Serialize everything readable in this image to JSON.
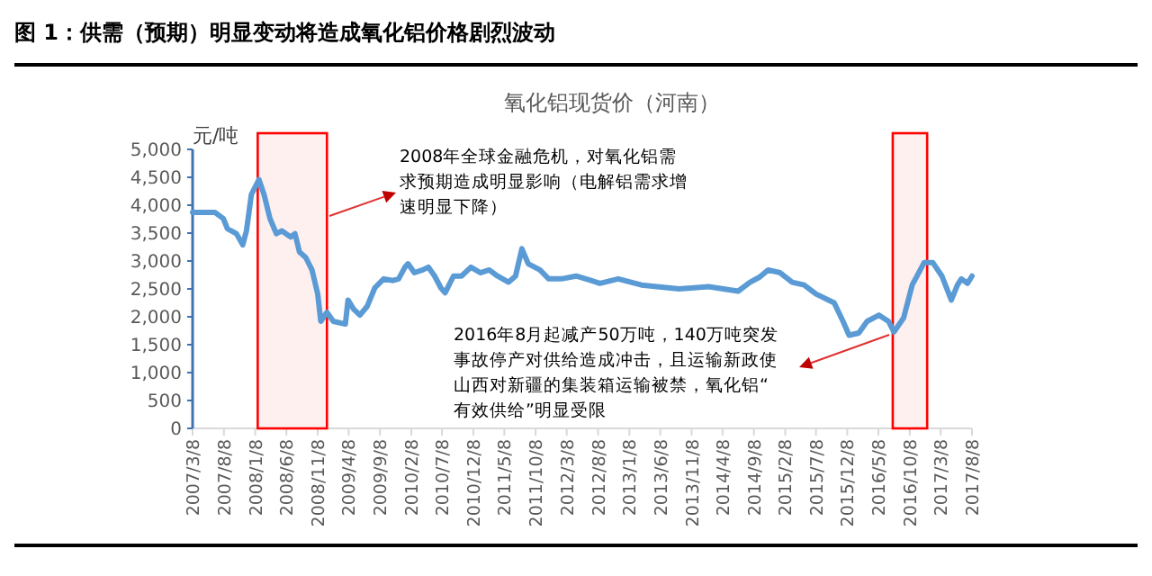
{
  "chart_data": {
    "type": "line",
    "title": "图 1：供需（预期）明显变动将造成氧化铝价格剧烈波动",
    "subtitle": "氧化铝现货价（河南）",
    "ylabel": "元/吨",
    "xlim": [
      "2007-03-08",
      "2017-08-08"
    ],
    "ylim": [
      0,
      5000
    ],
    "xticks": [
      {
        "value": "2007-03-08",
        "label": "2007/3/8"
      },
      {
        "value": "2007-08-08",
        "label": "2007/8/8"
      },
      {
        "value": "2008-01-08",
        "label": "2008/1/8"
      },
      {
        "value": "2008-06-08",
        "label": "2008/6/8"
      },
      {
        "value": "2008-11-08",
        "label": "2008/11/8"
      },
      {
        "value": "2009-04-08",
        "label": "2009/4/8"
      },
      {
        "value": "2009-09-08",
        "label": "2009/9/8"
      },
      {
        "value": "2010-02-08",
        "label": "2010/2/8"
      },
      {
        "value": "2010-07-08",
        "label": "2010/7/8"
      },
      {
        "value": "2010-12-08",
        "label": "2010/12/8"
      },
      {
        "value": "2011-05-08",
        "label": "2011/5/8"
      },
      {
        "value": "2011-10-08",
        "label": "2011/10/8"
      },
      {
        "value": "2012-03-08",
        "label": "2012/3/8"
      },
      {
        "value": "2012-08-08",
        "label": "2012/8/8"
      },
      {
        "value": "2013-01-08",
        "label": "2013/1/8"
      },
      {
        "value": "2013-06-08",
        "label": "2013/6/8"
      },
      {
        "value": "2013-11-08",
        "label": "2013/11/8"
      },
      {
        "value": "2014-04-08",
        "label": "2014/4/8"
      },
      {
        "value": "2014-09-08",
        "label": "2014/9/8"
      },
      {
        "value": "2015-02-08",
        "label": "2015/2/8"
      },
      {
        "value": "2015-07-08",
        "label": "2015/7/8"
      },
      {
        "value": "2015-12-08",
        "label": "2015/12/8"
      },
      {
        "value": "2016-05-08",
        "label": "2016/5/8"
      },
      {
        "value": "2016-10-08",
        "label": "2016/10/8"
      },
      {
        "value": "2017-03-08",
        "label": "2017/3/8"
      },
      {
        "value": "2017-08-08",
        "label": "2017/8/8"
      }
    ],
    "yticks": [
      0,
      {
        "value": 500,
        "label": "500"
      },
      {
        "value": 1000,
        "label": "1,000"
      },
      {
        "value": 1500,
        "label": "1,500"
      },
      {
        "value": 2000,
        "label": "2,000"
      },
      {
        "value": 2500,
        "label": "2,500"
      },
      {
        "value": 3000,
        "label": "3,000"
      },
      {
        "value": 3500,
        "label": "3,500"
      },
      {
        "value": 4000,
        "label": "4,000"
      },
      {
        "value": 4500,
        "label": "4,500"
      },
      {
        "value": 5000,
        "label": "5,000"
      }
    ],
    "x": [
      "2007-03-08",
      "2007-06-26",
      "2007-08-05",
      "2007-08-25",
      "2007-10-08",
      "2007-11-08",
      "2007-11-26",
      "2007-12-20",
      "2008-01-26",
      "2008-02-20",
      "2008-03-20",
      "2008-04-20",
      "2008-05-17",
      "2008-06-29",
      "2008-07-20",
      "2008-08-11",
      "2008-09-11",
      "2008-10-11",
      "2008-11-08",
      "2008-11-23",
      "2008-12-23",
      "2009-01-23",
      "2009-03-23",
      "2009-04-05",
      "2009-05-02",
      "2009-06-02",
      "2009-07-08",
      "2009-08-14",
      "2009-09-26",
      "2009-11-11",
      "2009-12-08",
      "2010-01-08",
      "2010-01-23",
      "2010-02-23",
      "2010-04-05",
      "2010-05-02",
      "2010-06-02",
      "2010-07-02",
      "2010-07-23",
      "2010-09-02",
      "2010-10-11",
      "2010-11-26",
      "2011-01-11",
      "2011-02-23",
      "2011-04-05",
      "2011-05-29",
      "2011-07-02",
      "2011-08-02",
      "2011-09-02",
      "2011-10-29",
      "2011-12-11",
      "2012-02-11",
      "2012-04-23",
      "2012-07-05",
      "2012-08-17",
      "2012-11-14",
      "2013-03-08",
      "2013-09-08",
      "2014-01-29",
      "2014-06-23",
      "2014-08-20",
      "2014-10-05",
      "2014-11-17",
      "2015-01-14",
      "2015-03-14",
      "2015-05-11",
      "2015-07-08",
      "2015-10-05",
      "2015-11-17",
      "2015-12-17",
      "2016-02-02",
      "2016-03-14",
      "2016-05-11",
      "2016-06-26",
      "2016-07-23",
      "2016-09-08",
      "2016-10-20",
      "2016-12-17",
      "2017-01-29",
      "2017-03-14",
      "2017-04-29",
      "2017-05-29",
      "2017-06-17",
      "2017-07-17",
      "2017-08-08"
    ],
    "series": [
      {
        "color": "#5b9bd5",
        "values": [
          3870,
          3870,
          3760,
          3580,
          3490,
          3290,
          3540,
          4190,
          4460,
          4190,
          3760,
          3490,
          3540,
          3430,
          3490,
          3160,
          3060,
          2840,
          2410,
          1920,
          2080,
          1920,
          1870,
          2300,
          2140,
          2030,
          2190,
          2520,
          2680,
          2650,
          2680,
          2890,
          2950,
          2790,
          2840,
          2890,
          2730,
          2520,
          2430,
          2730,
          2730,
          2890,
          2790,
          2840,
          2730,
          2620,
          2730,
          3220,
          2950,
          2840,
          2680,
          2680,
          2730,
          2650,
          2600,
          2680,
          2570,
          2500,
          2540,
          2460,
          2620,
          2710,
          2840,
          2790,
          2620,
          2570,
          2410,
          2250,
          1920,
          1670,
          1710,
          1920,
          2030,
          1920,
          1730,
          1980,
          2570,
          2970,
          2970,
          2730,
          2300,
          2570,
          2680,
          2600,
          2730
        ]
      }
    ],
    "bands": [
      {
        "axis": "x",
        "from": "2008-01-20",
        "to": "2008-12-23",
        "color": "#ff0000"
      },
      {
        "axis": "x",
        "from": "2016-07-17",
        "to": "2017-01-01",
        "color": "#ff0000"
      }
    ],
    "annotations": [
      "2008年全球金融危机，对氧化铝需求预期造成明显影响（电解铝需求增速明显下降）",
      "2016年8月起减产50万吨，140万吨突发事故停产对供给造成冲击，且运输新政使山西对新疆的集装箱运输被禁，氧化铝“有效供给”明显受限"
    ]
  }
}
